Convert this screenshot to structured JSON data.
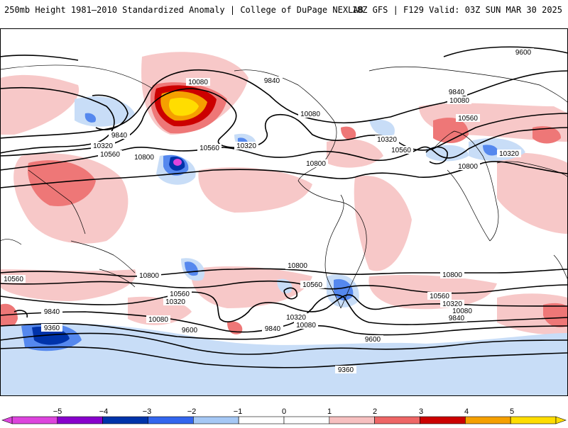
{
  "header": {
    "left_title": "250mb Height 1981–2010 Standardized Anomaly | College of DuPage NEXLAB",
    "right_title": "18Z GFS | F129 Valid: 03Z SUN MAR 30 2025"
  },
  "contour_labels": [
    {
      "id": "c9600-top",
      "text": "9600"
    },
    {
      "id": "c9840-pac",
      "text": "9840"
    },
    {
      "id": "c10080-ak",
      "text": "10080"
    },
    {
      "id": "c9840-ak",
      "text": "9840"
    },
    {
      "id": "c10320-w",
      "text": "10320"
    },
    {
      "id": "c10560-w",
      "text": "10560"
    },
    {
      "id": "c10800-pac",
      "text": "10800"
    },
    {
      "id": "c10560-pac",
      "text": "10560"
    },
    {
      "id": "c10320-pac",
      "text": "10320"
    },
    {
      "id": "c10080-na",
      "text": "10080"
    },
    {
      "id": "c10800-mx",
      "text": "10800"
    },
    {
      "id": "c10320-atl",
      "text": "10320"
    },
    {
      "id": "c10560-atl",
      "text": "10560"
    },
    {
      "id": "c9840-eu",
      "text": "9840"
    },
    {
      "id": "c10080-eu",
      "text": "10080"
    },
    {
      "id": "c10560-eu",
      "text": "10560"
    },
    {
      "id": "c10800-af",
      "text": "10800"
    },
    {
      "id": "c10320-me",
      "text": "10320"
    },
    {
      "id": "c10560-sw",
      "text": "10560"
    },
    {
      "id": "c10800-sp",
      "text": "10800"
    },
    {
      "id": "c10560-sp",
      "text": "10560"
    },
    {
      "id": "c10320-sp",
      "text": "10320"
    },
    {
      "id": "c10080-sp",
      "text": "10080"
    },
    {
      "id": "c9840-sw",
      "text": "9840"
    },
    {
      "id": "c9360-sw",
      "text": "9360"
    },
    {
      "id": "c9600-sp",
      "text": "9600"
    },
    {
      "id": "c10800-sa",
      "text": "10800"
    },
    {
      "id": "c10560-sa",
      "text": "10560"
    },
    {
      "id": "c10320-sa",
      "text": "10320"
    },
    {
      "id": "c10080-sa",
      "text": "10080"
    },
    {
      "id": "c9840-sa",
      "text": "9840"
    },
    {
      "id": "c9600-sa",
      "text": "9600"
    },
    {
      "id": "c10800-io",
      "text": "10800"
    },
    {
      "id": "c10560-io",
      "text": "10560"
    },
    {
      "id": "c10320-io",
      "text": "10320"
    },
    {
      "id": "c10080-io",
      "text": "10080"
    },
    {
      "id": "c9840-io",
      "text": "9840"
    },
    {
      "id": "c9360-bot",
      "text": "9360"
    }
  ],
  "colorbar": {
    "labels": [
      "−5",
      "−4",
      "−3",
      "−2",
      "−1",
      "0",
      "1",
      "2",
      "3",
      "4",
      "5"
    ],
    "colors": [
      "#dd44dd",
      "#8800cc",
      "#0033aa",
      "#3366ee",
      "#a6c8f5",
      "#ffffff",
      "#ffffff",
      "#f7c0c0",
      "#ee6666",
      "#cc0000",
      "#f5a000",
      "#ffdd00"
    ]
  },
  "colors": {
    "contour": "#000000",
    "coastline": "#000000",
    "weak_pos": "#f7c8c8",
    "mod_pos": "#ee7777",
    "strong_pos": "#cc0000",
    "very_strong_pos": "#f5a000",
    "extreme_pos": "#ffdd00",
    "weak_neg": "#c8ddf7",
    "mod_neg": "#5588ee",
    "strong_neg": "#0033aa",
    "extreme_neg": "#dd44dd"
  }
}
